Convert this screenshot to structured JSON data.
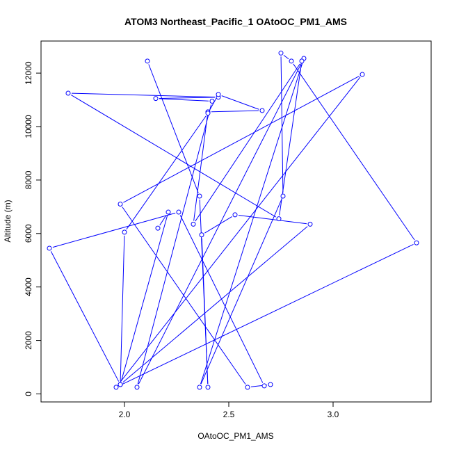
{
  "chart_data": {
    "type": "line",
    "title": "ATOM3 Northeast_Pacific_1 OAtoOC_PM1_AMS",
    "xlabel": "OAtoOC_PM1_AMS",
    "ylabel": "Altitude (m)",
    "xlim": [
      1.6,
      3.47
    ],
    "ylim": [
      -300,
      13200
    ],
    "xticks": [
      2.0,
      2.5,
      3.0
    ],
    "xtick_labels": [
      "2.0",
      "2.5",
      "3.0"
    ],
    "yticks": [
      0,
      2000,
      4000,
      6000,
      8000,
      10000,
      12000
    ],
    "ytick_labels": [
      "0",
      "2000",
      "4000",
      "6000",
      "8000",
      "10000",
      "12000"
    ],
    "grid": false,
    "series": [
      {
        "color": "#0000ff",
        "marker": "open-circle",
        "points": [
          {
            "x": 2.11,
            "y": 12450
          },
          {
            "x": 2.36,
            "y": 7400
          },
          {
            "x": 2.4,
            "y": 250
          },
          {
            "x": 2.37,
            "y": 5950
          },
          {
            "x": 2.53,
            "y": 6700
          },
          {
            "x": 2.89,
            "y": 6350
          },
          {
            "x": 1.98,
            "y": 350
          },
          {
            "x": 1.64,
            "y": 5450
          },
          {
            "x": 2.26,
            "y": 6800
          },
          {
            "x": 2.67,
            "y": 300
          },
          {
            "x": 2.7,
            "y": 350
          },
          {
            "x": 2.59,
            "y": 250
          },
          {
            "x": 1.98,
            "y": 7100
          },
          {
            "x": 3.14,
            "y": 11950
          },
          {
            "x": 1.96,
            "y": 250
          },
          {
            "x": 3.4,
            "y": 5650
          },
          {
            "x": 2.8,
            "y": 12450
          },
          {
            "x": 2.75,
            "y": 12750
          },
          {
            "x": 2.76,
            "y": 7400
          },
          {
            "x": 2.36,
            "y": 250
          },
          {
            "x": 2.86,
            "y": 12550
          },
          {
            "x": 2.06,
            "y": 250
          },
          {
            "x": 2.42,
            "y": 10950
          },
          {
            "x": 2.15,
            "y": 11050
          },
          {
            "x": 2.45,
            "y": 11100
          },
          {
            "x": 1.73,
            "y": 11250
          },
          {
            "x": 2.74,
            "y": 6550
          },
          {
            "x": 2.85,
            "y": 12450
          },
          {
            "x": 2.33,
            "y": 6350
          },
          {
            "x": 2.4,
            "y": 10550
          },
          {
            "x": 2.66,
            "y": 10600
          },
          {
            "x": 2.45,
            "y": 11200
          },
          {
            "x": 2.4,
            "y": 10500
          },
          {
            "x": 2.0,
            "y": 6050
          },
          {
            "x": 1.98,
            "y": 350
          },
          {
            "x": 2.21,
            "y": 6800
          },
          {
            "x": 2.16,
            "y": 6200
          }
        ]
      }
    ]
  }
}
